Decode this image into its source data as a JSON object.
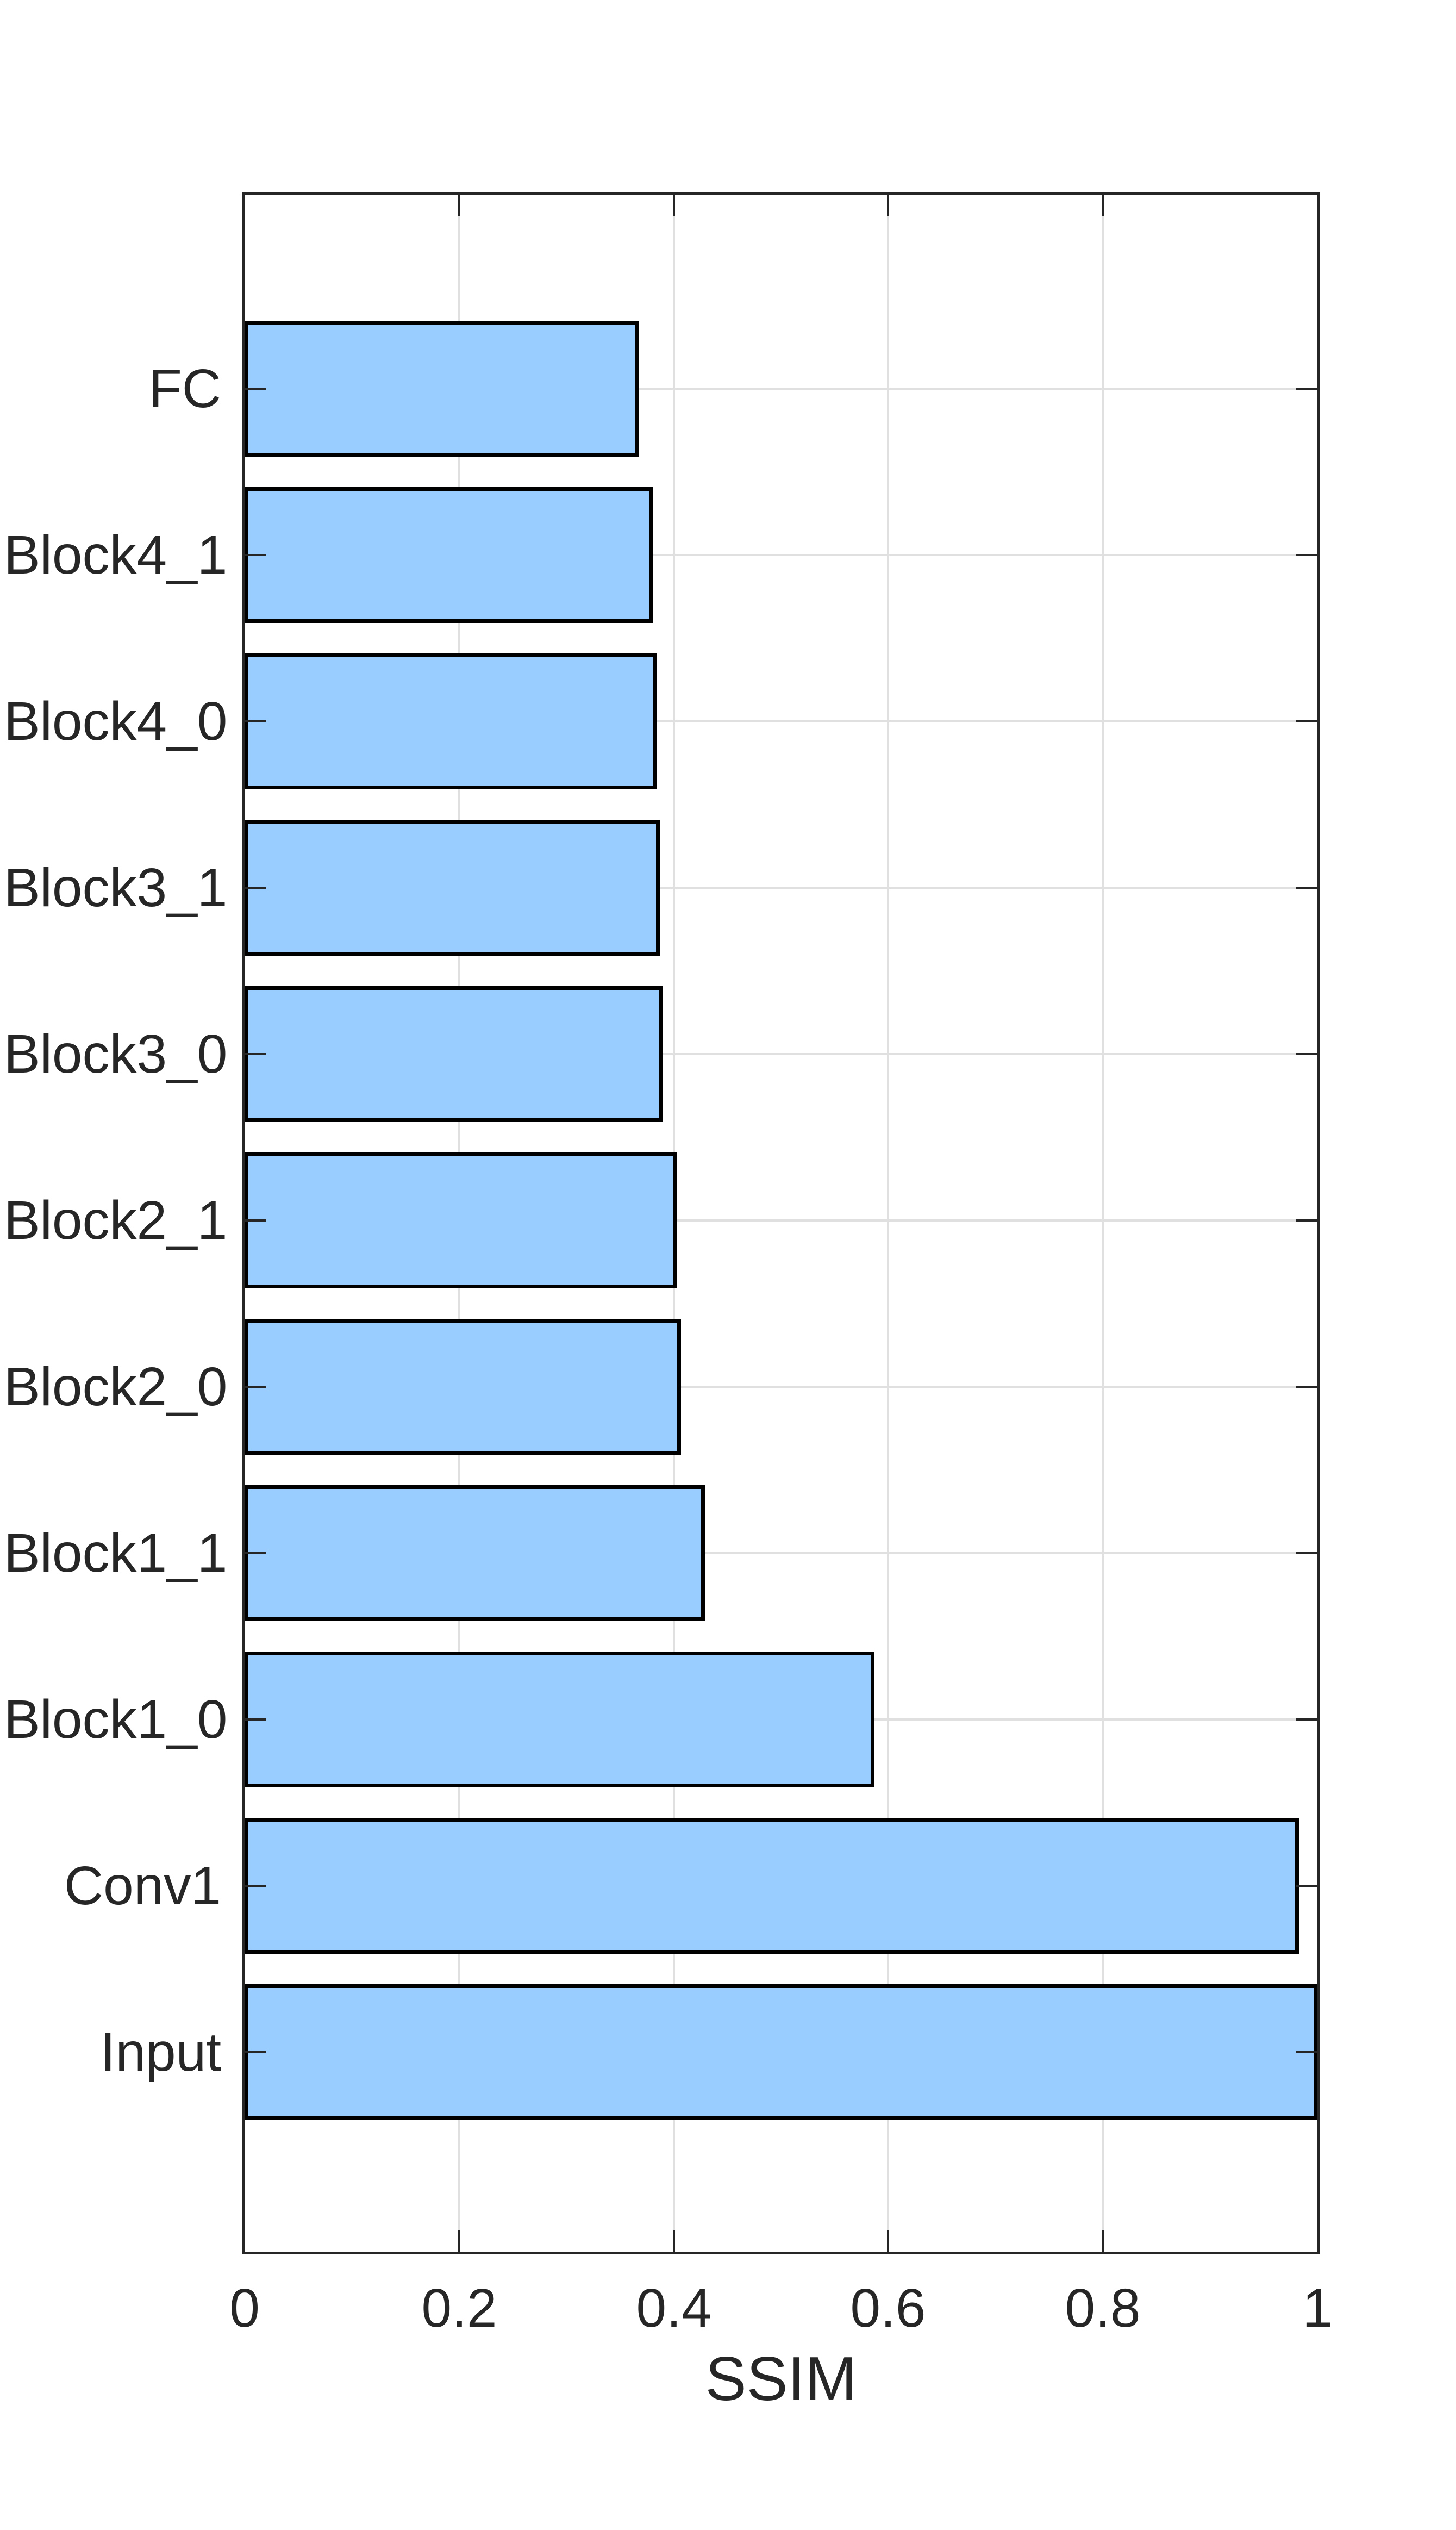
{
  "chart_data": {
    "type": "bar",
    "orientation": "horizontal",
    "title": "",
    "xlabel": "SSIM",
    "categories_top_to_bottom": [
      "FC",
      "Block4_1",
      "Block4_0",
      "Block3_1",
      "Block3_0",
      "Block2_1",
      "Block2_0",
      "Block1_1",
      "Block1_0",
      "Conv1",
      "Input"
    ],
    "values": [
      0.368,
      0.381,
      0.384,
      0.387,
      0.39,
      0.403,
      0.407,
      0.429,
      0.587,
      0.983,
      1.0
    ],
    "xlim": [
      0,
      1
    ],
    "x_ticks": [
      0,
      0.2,
      0.4,
      0.6,
      0.8,
      1
    ],
    "x_tick_labels": [
      "0",
      "0.2",
      "0.4",
      "0.6",
      "0.8",
      "1"
    ],
    "grid": true,
    "legend": "none",
    "colors": {
      "bar_fill": "#99CCFF",
      "bar_edge": "#000000",
      "axis": "#262626",
      "grid": "#E0E0E0",
      "text": "#262626",
      "background": "#FFFFFF"
    }
  }
}
